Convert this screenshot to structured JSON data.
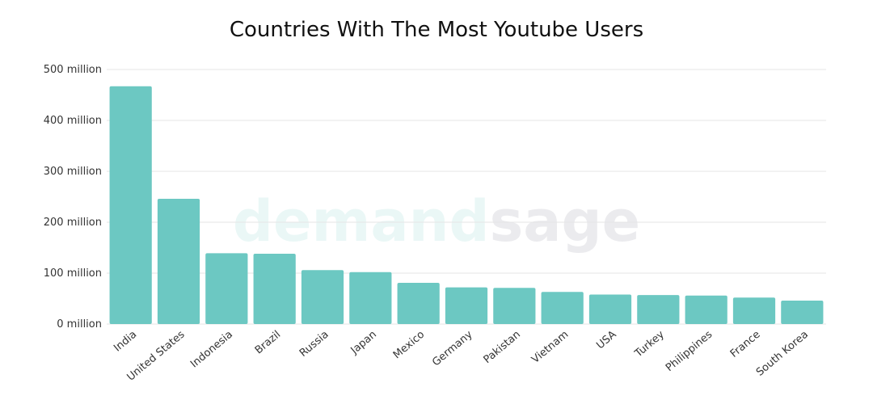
{
  "chart_data": {
    "type": "bar",
    "title": "Countries With The Most Youtube Users",
    "watermark": [
      "demand",
      "sage"
    ],
    "categories": [
      "India",
      "United States",
      "Indonesia",
      "Brazil",
      "Russia",
      "Japan",
      "Mexico",
      "Germany",
      "Pakistan",
      "Vietnam",
      "USA",
      "Turkey",
      "Philippines",
      "France",
      "South Korea"
    ],
    "values": [
      467,
      246,
      139,
      138,
      106,
      102,
      81,
      72,
      71,
      63,
      58,
      57,
      56,
      52,
      46
    ],
    "color": "#6cc8c2",
    "ylim": [
      0,
      500
    ],
    "yticks": [
      {
        "value": 0,
        "label": "0 million"
      },
      {
        "value": 100,
        "label": "100 million"
      },
      {
        "value": 200,
        "label": "200 million"
      },
      {
        "value": 300,
        "label": "300 million"
      },
      {
        "value": 400,
        "label": "400 million"
      },
      {
        "value": 500,
        "label": "500 million"
      }
    ],
    "grid": true
  }
}
